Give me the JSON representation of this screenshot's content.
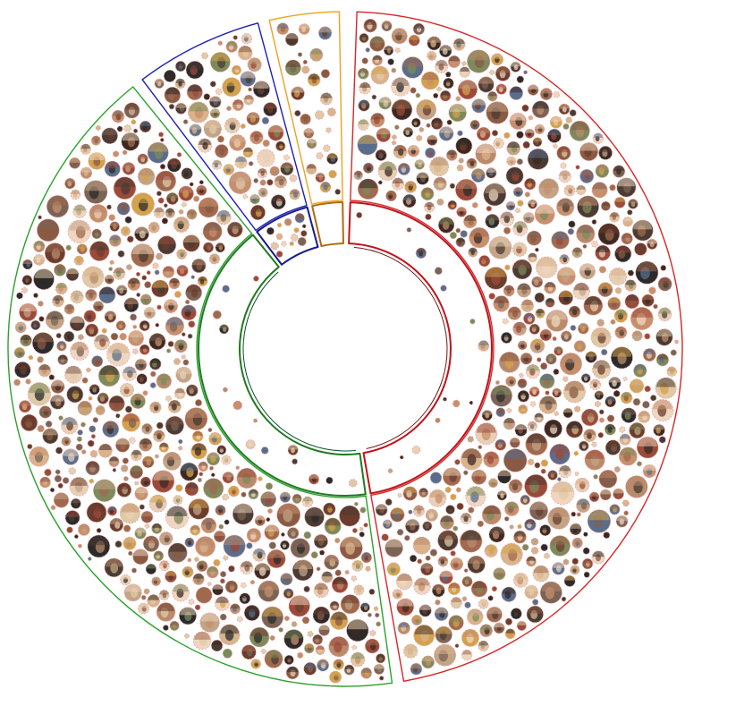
{
  "diagram": {
    "type": "radial-sunburst-bubble-cluster",
    "rings": 2,
    "segments": [
      {
        "id": "outer-red",
        "ring": "outer",
        "color": "#d62728",
        "density": "high"
      },
      {
        "id": "outer-green",
        "ring": "outer",
        "color": "#2ca02c",
        "density": "high"
      },
      {
        "id": "outer-blue",
        "ring": "outer",
        "color": "#1f1fb4",
        "density": "medium"
      },
      {
        "id": "outer-orange",
        "ring": "outer",
        "color": "#f0a020",
        "density": "low"
      },
      {
        "id": "inner-red",
        "ring": "inner",
        "color": "#c0141c",
        "density": "very-low"
      },
      {
        "id": "inner-green",
        "ring": "inner",
        "color": "#1f7a1f",
        "density": "very-low"
      },
      {
        "id": "inner-blue",
        "ring": "inner",
        "color": "#1a1a8c",
        "density": "very-low"
      },
      {
        "id": "inner-orange",
        "ring": "inner",
        "color": "#b06a10",
        "density": "none"
      }
    ],
    "center_rings": [
      {
        "id": "inner-core-red",
        "color": "#7a1515"
      },
      {
        "id": "inner-core-green",
        "color": "#0d4d2b"
      }
    ],
    "thumbnail_palette": [
      "#6b3d2e",
      "#a06a4f",
      "#d9b38c",
      "#3c2a22",
      "#c78f6d",
      "#8a5a44",
      "#e8cfb5",
      "#2b2b2b",
      "#b98b6b",
      "#5a6e8c",
      "#7d8a5b",
      "#d4a24c",
      "#9b4a3a",
      "#e0c9a6",
      "#4a3b33",
      "#f0d6c0",
      "#c2a486",
      "#7b6356"
    ]
  }
}
